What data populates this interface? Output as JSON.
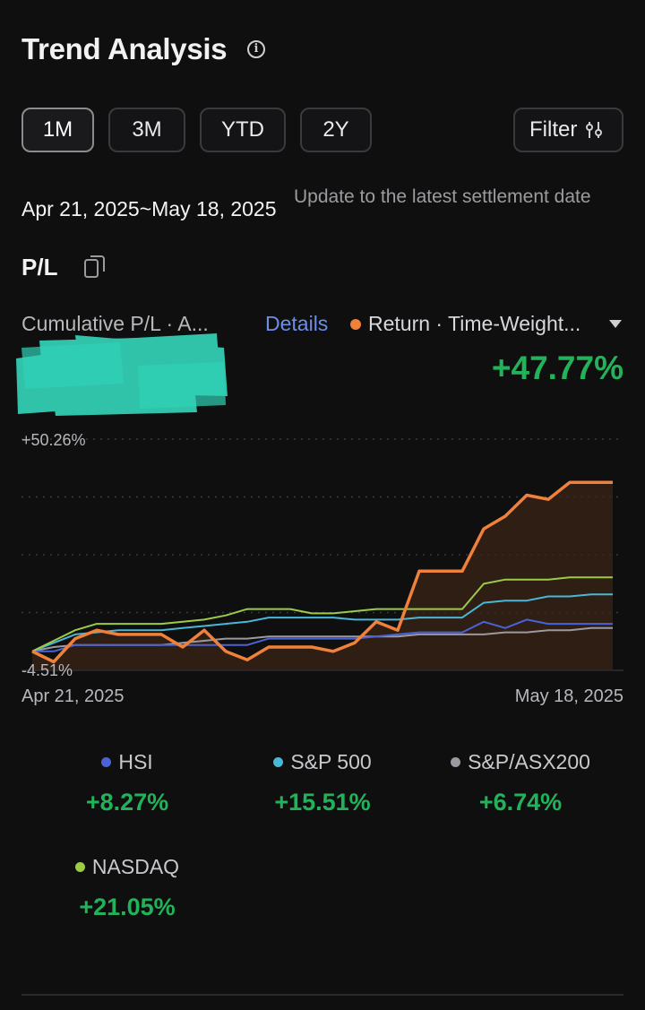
{
  "header": {
    "title": "Trend Analysis",
    "info_icon": "info-icon"
  },
  "periods": {
    "items": [
      "1M",
      "3M",
      "YTD",
      "2Y"
    ],
    "active": "1M"
  },
  "filter": {
    "label": "Filter",
    "icon": "sliders-icon"
  },
  "date_range": "Apr 21, 2025~May 18, 2025",
  "update_note": "Update to the latest settlement date",
  "section": {
    "label": "P/L",
    "icon": "copy-icon"
  },
  "metrics": {
    "left_label": "Cumulative P/L · A...",
    "details_label": "Details",
    "return_label": "Return · Time-Weight...",
    "return_value": "+47.77%"
  },
  "colors": {
    "return": "#f0813a",
    "hsi": "#4a62d8",
    "sp500": "#48b8d8",
    "asx": "#9a9aa0",
    "nasdaq": "#9ccc46",
    "positive": "#22b35a",
    "link": "#6c8ee6"
  },
  "chart_data": {
    "type": "line",
    "y_axis_top": "+50.26%",
    "y_axis_bottom": "-4.51%",
    "ylim": [
      -4.51,
      50.26
    ],
    "x_start_label": "Apr 21, 2025",
    "x_end_label": "May 18, 2025",
    "grid": true,
    "points": 28,
    "series": [
      {
        "name": "Return",
        "key": "return",
        "values": [
          0,
          -2.5,
          3,
          5,
          4,
          4,
          4,
          1,
          5,
          0,
          -2,
          1,
          1,
          1,
          0,
          2,
          7,
          5,
          19,
          19,
          19,
          29,
          32,
          37,
          36,
          40,
          40,
          40
        ]
      },
      {
        "name": "HSI",
        "key": "hsi",
        "values": [
          0,
          0,
          1.5,
          1.5,
          1.5,
          1.5,
          1.5,
          1.5,
          1.5,
          1.5,
          1.5,
          3,
          3,
          3,
          3,
          3,
          3.5,
          4,
          4.5,
          4.5,
          4.5,
          7,
          5.5,
          7.5,
          6.5,
          6.5,
          6.5,
          6.5
        ]
      },
      {
        "name": "S&P 500",
        "key": "sp500",
        "values": [
          0,
          2,
          4,
          4.5,
          5,
          5,
          5,
          5.5,
          6,
          6.5,
          7,
          8,
          8,
          8,
          8,
          7.5,
          7.5,
          7.5,
          8,
          8,
          8,
          11.5,
          12,
          12,
          13,
          13,
          13.5,
          13.5
        ]
      },
      {
        "name": "S&P/ASX200",
        "key": "asx",
        "values": [
          0,
          1,
          1.5,
          1.5,
          1.5,
          1.5,
          1.5,
          2,
          2.5,
          3,
          3,
          3.5,
          3.5,
          3.5,
          3.5,
          3.5,
          3.5,
          3.5,
          4,
          4,
          4,
          4,
          4.5,
          4.5,
          5,
          5,
          5.5,
          5.5
        ]
      },
      {
        "name": "NASDAQ",
        "key": "nasdaq",
        "values": [
          0,
          2.5,
          5,
          6.5,
          6.5,
          6.5,
          6.5,
          7,
          7.5,
          8.5,
          10,
          10,
          10,
          9,
          9,
          9.5,
          10,
          10,
          10,
          10,
          10,
          16,
          17,
          17,
          17,
          17.5,
          17.5,
          17.5
        ]
      }
    ]
  },
  "legend": [
    {
      "name": "HSI",
      "key": "hsi",
      "value": "+8.27%"
    },
    {
      "name": "S&P 500",
      "key": "sp500",
      "value": "+15.51%"
    },
    {
      "name": "S&P/ASX200",
      "key": "asx",
      "value": "+6.74%"
    },
    {
      "name": "NASDAQ",
      "key": "nasdaq",
      "value": "+21.05%"
    }
  ]
}
